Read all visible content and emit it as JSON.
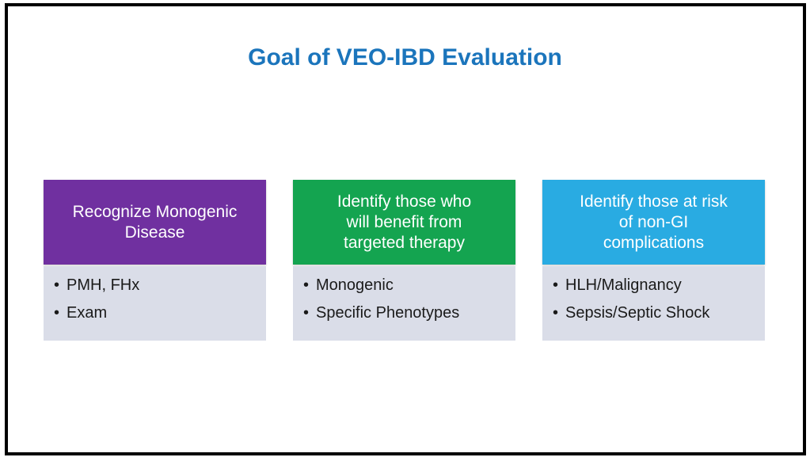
{
  "title": {
    "text": "Goal of VEO-IBD Evaluation",
    "color": "#1B75BC"
  },
  "bullet_char": "•",
  "colors": {
    "frame_border": "#000000",
    "body_bg": "#DADDE8",
    "body_text": "#1A1A1A"
  },
  "columns": [
    {
      "name": "recognize-monogenic-disease",
      "header_lines": [
        "Recognize Monogenic",
        "Disease"
      ],
      "header_full": "Recognize Monogenic Disease",
      "header_color": "#7030A0",
      "header_text_color": "#FFFFFF",
      "bullets": [
        "PMH, FHx",
        "Exam"
      ]
    },
    {
      "name": "benefit-targeted-therapy",
      "header_lines": [
        "Identify those who",
        "will benefit from",
        "targeted therapy"
      ],
      "header_full": "Identify those who will benefit from targeted therapy",
      "header_color": "#14A450",
      "header_text_color": "#FFFFFF",
      "bullets": [
        "Monogenic",
        "Specific Phenotypes"
      ]
    },
    {
      "name": "non-gi-complications",
      "header_lines": [
        "Identify those at risk",
        "of non-GI",
        "complications"
      ],
      "header_full": "Identify those at risk of non-GI complications",
      "header_color": "#29ABE2",
      "header_text_color": "#FFFFFF",
      "bullets": [
        "HLH/Malignancy",
        "Sepsis/Septic Shock"
      ]
    }
  ]
}
